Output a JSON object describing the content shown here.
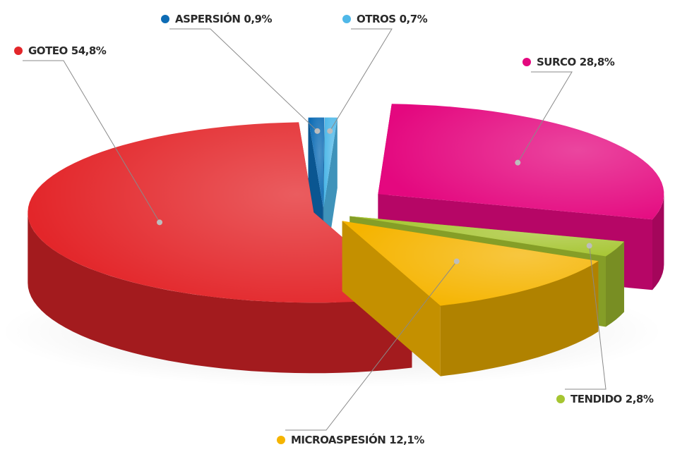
{
  "chart_data": {
    "type": "pie",
    "three_d": true,
    "categories": [
      "ASPERSIÓN",
      "OTROS",
      "SURCO",
      "TENDIDO",
      "MICROASPESIÓN",
      "GOTEO"
    ],
    "values": [
      0.9,
      0.7,
      28.8,
      2.8,
      12.1,
      54.8
    ],
    "value_labels": [
      "0,9%",
      "0,7%",
      "28,8%",
      "2,8%",
      "12,1%",
      "54,8%"
    ],
    "colors": [
      "#0d6cb5",
      "#4fb8e8",
      "#e4087f",
      "#a6c531",
      "#f5b400",
      "#e3262a"
    ]
  }
}
